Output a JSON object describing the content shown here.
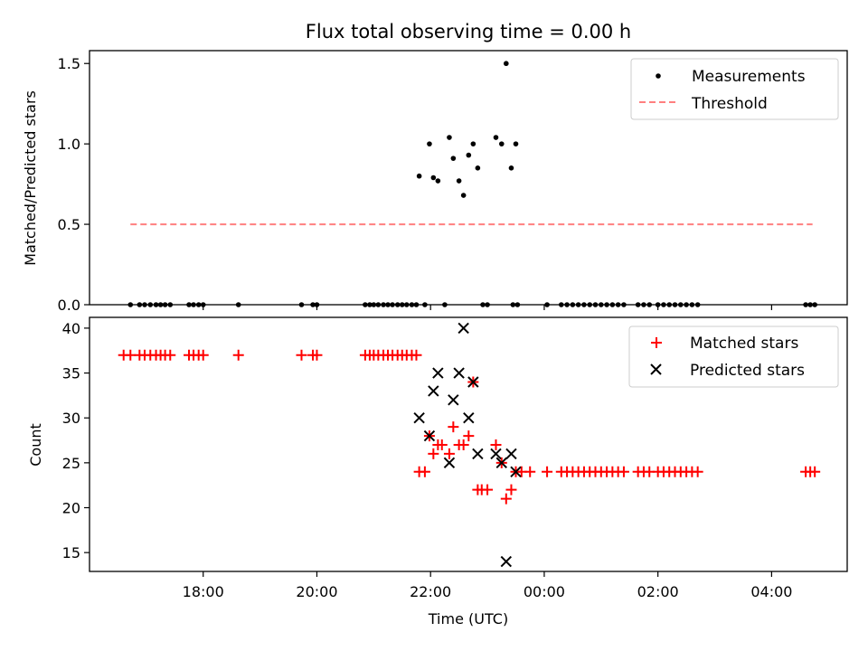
{
  "chart_data": [
    {
      "type": "scatter",
      "title": "Flux total observing time = 0.00 h",
      "xlabel": "",
      "ylabel": "Matched/Predicted stars",
      "xlim": [
        16.0,
        29.33
      ],
      "ylim": [
        0.0,
        1.58
      ],
      "yticks": [
        0.0,
        0.5,
        1.0,
        1.5
      ],
      "ytick_labels": [
        "0.0",
        "0.5",
        "1.0",
        "1.5"
      ],
      "legend_position": "top-right",
      "legend": [
        {
          "label": "Measurements",
          "marker": "dot",
          "color": "#000000"
        },
        {
          "label": "Threshold",
          "marker": "dashed-line",
          "color": "#ff7f7f"
        }
      ],
      "threshold": {
        "x": [
          16.72,
          28.72
        ],
        "y": 0.5
      },
      "series": [
        {
          "name": "Measurements",
          "color": "#000000",
          "x": [
            16.72,
            16.88,
            16.97,
            17.07,
            17.17,
            17.25,
            17.33,
            17.42,
            17.75,
            17.83,
            17.92,
            18.0,
            18.62,
            19.73,
            19.93,
            20.0,
            20.85,
            20.93,
            21.0,
            21.08,
            21.17,
            21.25,
            21.33,
            21.42,
            21.5,
            21.58,
            21.67,
            21.75,
            21.9,
            22.25,
            22.92,
            23.0,
            23.45,
            23.53,
            24.05,
            24.3,
            24.4,
            24.5,
            24.6,
            24.7,
            24.8,
            24.9,
            25.0,
            25.1,
            25.2,
            25.3,
            25.4,
            25.65,
            25.75,
            25.85,
            26.0,
            26.1,
            26.2,
            26.3,
            26.4,
            26.5,
            26.6,
            26.7,
            28.6,
            28.68,
            28.76,
            21.8,
            21.98,
            22.05,
            22.13,
            22.33,
            22.4,
            22.5,
            22.58,
            22.67,
            22.75,
            22.83,
            23.15,
            23.25,
            23.33,
            23.42,
            23.5
          ],
          "y": [
            0,
            0,
            0,
            0,
            0,
            0,
            0,
            0,
            0,
            0,
            0,
            0,
            0,
            0,
            0,
            0,
            0,
            0,
            0,
            0,
            0,
            0,
            0,
            0,
            0,
            0,
            0,
            0,
            0,
            0,
            0,
            0,
            0,
            0,
            0,
            0,
            0,
            0,
            0,
            0,
            0,
            0,
            0,
            0,
            0,
            0,
            0,
            0,
            0,
            0,
            0,
            0,
            0,
            0,
            0,
            0,
            0,
            0,
            0,
            0,
            0,
            0.8,
            1.0,
            0.79,
            0.77,
            1.04,
            0.91,
            0.77,
            0.68,
            0.93,
            1.0,
            0.85,
            1.04,
            1.0,
            1.5,
            0.85,
            1.0
          ]
        }
      ]
    },
    {
      "type": "scatter",
      "title": "",
      "xlabel": "Time (UTC)",
      "ylabel": "Count",
      "xlim": [
        16.0,
        29.33
      ],
      "ylim": [
        12.9,
        41.2
      ],
      "yticks": [
        15,
        20,
        25,
        30,
        35,
        40
      ],
      "ytick_labels": [
        "15",
        "20",
        "25",
        "30",
        "35",
        "40"
      ],
      "xticks": [
        18,
        20,
        22,
        24,
        26,
        28
      ],
      "xtick_labels": [
        "18:00",
        "20:00",
        "22:00",
        "00:00",
        "02:00",
        "04:00"
      ],
      "legend_position": "top-right",
      "legend": [
        {
          "label": "Matched stars",
          "marker": "plus",
          "color": "#ff0000"
        },
        {
          "label": "Predicted stars",
          "marker": "x",
          "color": "#000000"
        }
      ],
      "series": [
        {
          "name": "Matched stars",
          "color": "#ff0000",
          "x": [
            16.6,
            16.72,
            16.88,
            16.97,
            17.07,
            17.17,
            17.25,
            17.33,
            17.42,
            17.75,
            17.83,
            17.92,
            18.0,
            18.62,
            19.73,
            19.93,
            20.0,
            20.85,
            20.93,
            21.0,
            21.08,
            21.17,
            21.25,
            21.33,
            21.42,
            21.5,
            21.58,
            21.67,
            21.75,
            21.8,
            21.9,
            21.98,
            22.05,
            22.13,
            22.2,
            22.33,
            22.4,
            22.5,
            22.58,
            22.67,
            22.75,
            22.83,
            22.9,
            23.0,
            23.15,
            23.25,
            23.33,
            23.42,
            23.5,
            23.6,
            23.75,
            24.05,
            24.3,
            24.4,
            24.5,
            24.6,
            24.7,
            24.8,
            24.9,
            25.0,
            25.1,
            25.2,
            25.3,
            25.4,
            25.65,
            25.75,
            25.85,
            26.0,
            26.1,
            26.2,
            26.3,
            26.4,
            26.5,
            26.6,
            26.7,
            28.6,
            28.68,
            28.76
          ],
          "y": [
            37,
            37,
            37,
            37,
            37,
            37,
            37,
            37,
            37,
            37,
            37,
            37,
            37,
            37,
            37,
            37,
            37,
            37,
            37,
            37,
            37,
            37,
            37,
            37,
            37,
            37,
            37,
            37,
            37,
            24,
            24,
            28,
            26,
            27,
            27,
            26,
            29,
            27,
            27,
            28,
            34,
            22,
            22,
            22,
            27,
            25,
            21,
            22,
            24,
            24,
            24,
            24,
            24,
            24,
            24,
            24,
            24,
            24,
            24,
            24,
            24,
            24,
            24,
            24,
            24,
            24,
            24,
            24,
            24,
            24,
            24,
            24,
            24,
            24,
            24,
            24,
            24,
            24
          ]
        },
        {
          "name": "Predicted stars",
          "color": "#000000",
          "x": [
            21.8,
            21.98,
            22.05,
            22.13,
            22.33,
            22.4,
            22.5,
            22.58,
            22.67,
            22.75,
            22.83,
            23.15,
            23.25,
            23.33,
            23.42,
            23.5
          ],
          "y": [
            30,
            28,
            33,
            35,
            25,
            32,
            35,
            40,
            30,
            34,
            26,
            26,
            25,
            14,
            26,
            24
          ]
        }
      ]
    }
  ]
}
